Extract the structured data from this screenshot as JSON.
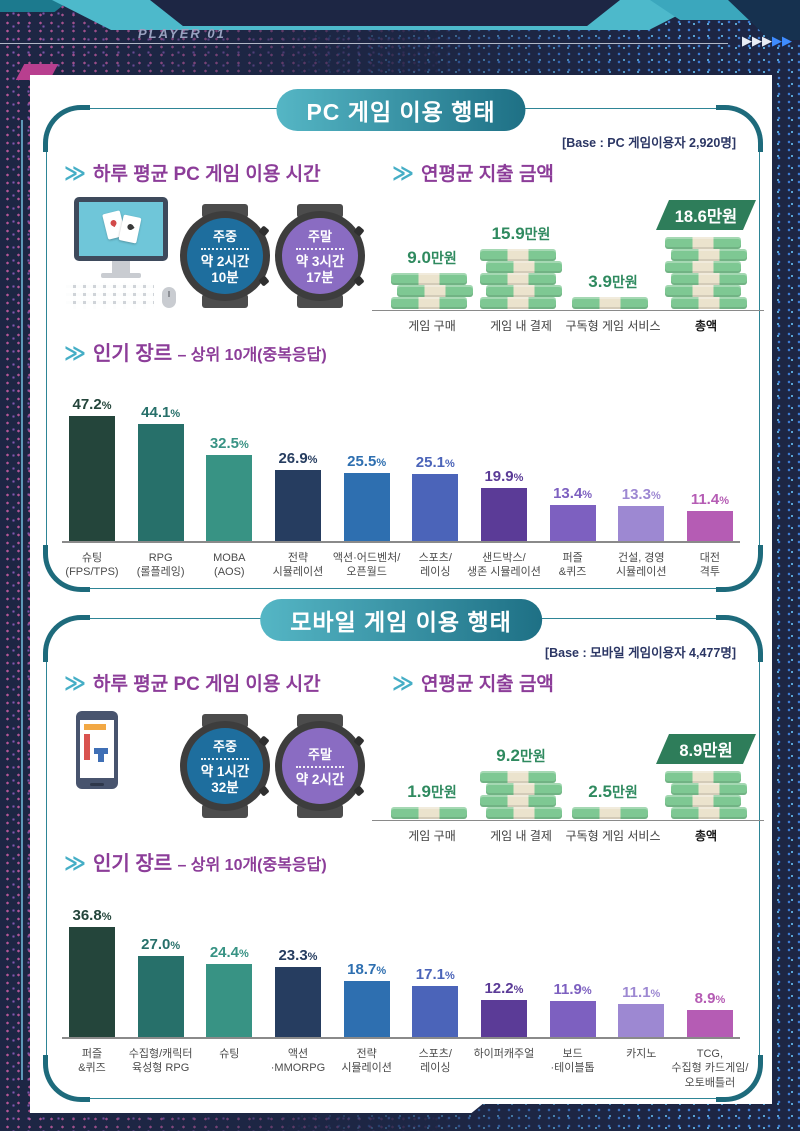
{
  "banner": {
    "player_label": "PLAYER 01",
    "arrows_white": "▶▶▶",
    "arrows_blue": "▶▶"
  },
  "icons": {
    "chevron": "≫"
  },
  "palette": {
    "accent_teal": "#2e8596",
    "heading_purple": "#8c3d99",
    "money_green": "#7ec893",
    "money_cream": "#ebe3cd",
    "money_label_green": "#2f8a5f",
    "badge_green": "#2e7d5a",
    "bar_colors": [
      "#24453b",
      "#27706a",
      "#389384",
      "#263d60",
      "#2e6fb0",
      "#4b64b9",
      "#5b3b97",
      "#7d60c0",
      "#9d88d2",
      "#b55cb4"
    ]
  },
  "sections": [
    {
      "title": "PC 게임 이용 행태",
      "base_note": "[Base : PC 게임이용자 2,920명]",
      "time_heading": "하루 평균 PC 게임 이용 시간",
      "spend_heading": "연평균 지출 금액",
      "genre_heading": "인기 장르",
      "genre_heading_sub": "– 상위 10개(중복응답)",
      "device": "desktop-computer",
      "watches": [
        {
          "period": "주중",
          "time_lines": [
            "약 2시간",
            "10분"
          ],
          "face_color": "#1e6e9e"
        },
        {
          "period": "주말",
          "time_lines": [
            "약 3시간",
            "17분"
          ],
          "face_color": "#8a6cc2"
        }
      ]
    },
    {
      "title": "모바일 게임 이용 행태",
      "base_note": "[Base : 모바일 게임이용자 4,477명]",
      "time_heading": "하루 평균 PC 게임 이용 시간",
      "spend_heading": "연평균 지출 금액",
      "genre_heading": "인기 장르",
      "genre_heading_sub": "– 상위 10개(중복응답)",
      "device": "smartphone",
      "watches": [
        {
          "period": "주중",
          "time_lines": [
            "약 1시간",
            "32분"
          ],
          "face_color": "#1e6e9e"
        },
        {
          "period": "주말",
          "time_lines": [
            "약 2시간"
          ],
          "face_color": "#8a6cc2"
        }
      ]
    }
  ],
  "chart_data": [
    {
      "id": "pc-spending",
      "type": "bar",
      "section": "PC 게임 이용 행태",
      "title": "연평균 지출 금액",
      "unit": "만원",
      "categories": [
        "게임 구매",
        "게임 내 결제",
        "구독형 게임 서비스",
        "총액"
      ],
      "values": [
        9.0,
        15.9,
        3.9,
        18.6
      ],
      "value_labels": [
        "9.0",
        "15.9",
        "3.9",
        "18.6"
      ],
      "stack_layers": [
        3,
        5,
        1,
        6
      ],
      "total_index": 3
    },
    {
      "id": "pc-genres",
      "type": "bar",
      "section": "PC 게임 이용 행태",
      "title": "인기 장르 – 상위 10개(중복응답)",
      "unit": "%",
      "ylim": [
        0,
        50
      ],
      "categories_lines": [
        [
          "슈팅",
          "(FPS/TPS)"
        ],
        [
          "RPG",
          "(롤플레잉)"
        ],
        [
          "MOBA",
          "(AOS)"
        ],
        [
          "전략",
          "시뮬레이션"
        ],
        [
          "액션·어드벤처/",
          "오픈월드"
        ],
        [
          "스포츠/",
          "레이싱"
        ],
        [
          "샌드박스/",
          "생존 시뮬레이션"
        ],
        [
          "퍼즐",
          "&퀴즈"
        ],
        [
          "건설, 경영",
          "시뮬레이션"
        ],
        [
          "대전",
          "격투"
        ]
      ],
      "values": [
        47.2,
        44.1,
        32.5,
        26.9,
        25.5,
        25.1,
        19.9,
        13.4,
        13.3,
        11.4
      ],
      "value_labels": [
        "47.2",
        "44.1",
        "32.5",
        "26.9",
        "25.5",
        "25.1",
        "19.9",
        "13.4",
        "13.3",
        "11.4"
      ]
    },
    {
      "id": "mobile-spending",
      "type": "bar",
      "section": "모바일 게임 이용 행태",
      "title": "연평균 지출 금액",
      "unit": "만원",
      "categories": [
        "게임 구매",
        "게임 내 결제",
        "구독형 게임 서비스",
        "총액"
      ],
      "values": [
        1.9,
        9.2,
        2.5,
        8.9
      ],
      "value_labels": [
        "1.9",
        "9.2",
        "2.5",
        "8.9"
      ],
      "stack_layers": [
        1,
        4,
        1,
        4
      ],
      "total_index": 3
    },
    {
      "id": "mobile-genres",
      "type": "bar",
      "section": "모바일 게임 이용 행태",
      "title": "인기 장르 – 상위 10개(중복응답)",
      "unit": "%",
      "ylim": [
        0,
        40
      ],
      "categories_lines": [
        [
          "퍼즐",
          "&퀴즈"
        ],
        [
          "수집형/캐릭터",
          "육성형 RPG"
        ],
        [
          "슈팅"
        ],
        [
          "액션",
          "·MMORPG"
        ],
        [
          "전략",
          "시뮬레이션"
        ],
        [
          "스포츠/",
          "레이싱"
        ],
        [
          "하이퍼캐주얼"
        ],
        [
          "보드",
          "·테이블톱"
        ],
        [
          "카지노"
        ],
        [
          "TCG,",
          "수집형 카드게임/",
          "오토배틀러"
        ]
      ],
      "values": [
        36.8,
        27.0,
        24.4,
        23.3,
        18.7,
        17.1,
        12.2,
        11.9,
        11.1,
        8.9
      ],
      "value_labels": [
        "36.8",
        "27.0",
        "24.4",
        "23.3",
        "18.7",
        "17.1",
        "12.2",
        "11.9",
        "11.1",
        "8.9"
      ]
    }
  ]
}
